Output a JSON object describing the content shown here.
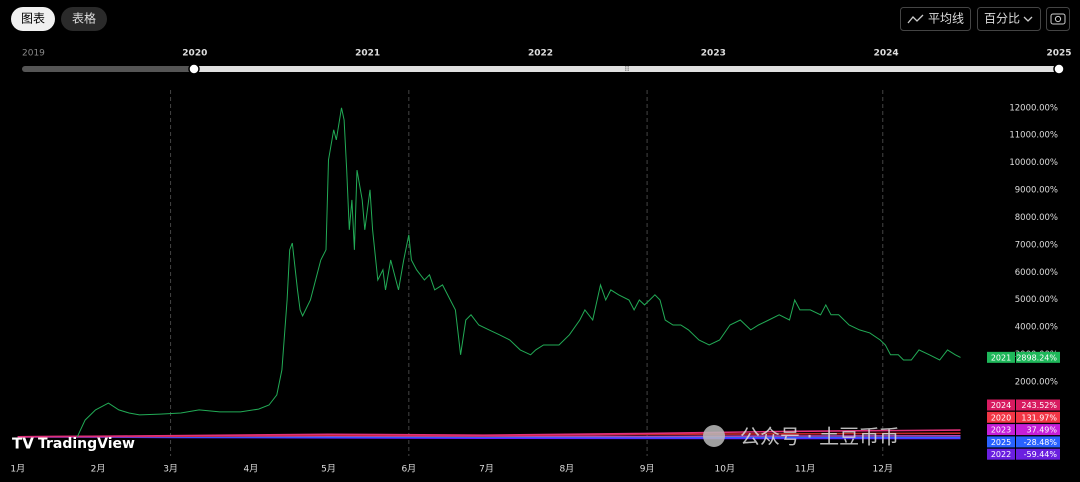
{
  "toolbar": {
    "tabs": [
      "图表",
      "表格"
    ],
    "buttons": [
      "平均线",
      "百分比"
    ]
  },
  "range_selector": {
    "years": [
      "2019",
      "2020",
      "2021",
      "2022",
      "2023",
      "2024",
      "2025"
    ]
  },
  "brand": "TradingView",
  "watermark": "公众号 · 土豆币币",
  "chart_data": {
    "type": "line",
    "xlim": [
      -3,
      370
    ],
    "xticks": [
      {
        "value": 0,
        "label": "1月"
      },
      {
        "value": 31,
        "label": "2月"
      },
      {
        "value": 59,
        "label": "3月"
      },
      {
        "value": 90,
        "label": "4月"
      },
      {
        "value": 120,
        "label": "5月"
      },
      {
        "value": 151,
        "label": "6月"
      },
      {
        "value": 181,
        "label": "7月"
      },
      {
        "value": 212,
        "label": "8月"
      },
      {
        "value": 243,
        "label": "9月"
      },
      {
        "value": 273,
        "label": "10月"
      },
      {
        "value": 304,
        "label": "11月"
      },
      {
        "value": 334,
        "label": "12月"
      }
    ],
    "ylim": [
      -700,
      12650
    ],
    "yticks": [
      {
        "value": 2000,
        "label": "2000.00%"
      },
      {
        "value": 3000,
        "label": "3000.00%"
      },
      {
        "value": 4000,
        "label": "4000.00%"
      },
      {
        "value": 5000,
        "label": "5000.00%"
      },
      {
        "value": 6000,
        "label": "6000.00%"
      },
      {
        "value": 7000,
        "label": "7000.00%"
      },
      {
        "value": 8000,
        "label": "8000.00%"
      },
      {
        "value": 9000,
        "label": "9000.00%"
      },
      {
        "value": 10000,
        "label": "10000.00%"
      },
      {
        "value": 11000,
        "label": "11000.00%"
      },
      {
        "value": 12000,
        "label": "12000.00%"
      }
    ],
    "series": [
      {
        "name": "2021",
        "color": "#22ab56",
        "tag_color": "#1eb75a",
        "x": [
          23,
          26,
          30,
          35,
          39,
          43,
          47,
          55,
          63,
          70,
          78,
          86,
          93,
          97,
          100,
          102,
          104,
          105,
          106,
          108,
          109,
          110,
          113,
          115,
          117,
          119,
          120,
          122,
          123,
          125,
          126,
          127,
          128,
          129,
          130,
          131,
          133,
          134,
          136,
          137,
          139,
          141,
          142,
          144,
          146,
          147,
          149,
          151,
          152,
          154,
          157,
          159,
          161,
          164,
          167,
          169,
          171,
          173,
          175,
          178,
          182,
          186,
          190,
          194,
          198,
          200,
          203,
          209,
          213,
          217,
          219,
          222,
          225,
          227,
          229,
          232,
          236,
          238,
          240,
          242,
          244,
          246,
          248,
          250,
          253,
          256,
          259,
          263,
          267,
          271,
          275,
          279,
          283,
          286,
          290,
          294,
          298,
          300,
          302,
          306,
          310,
          312,
          314,
          317,
          321,
          325,
          329,
          333,
          335,
          337,
          340,
          342,
          345,
          348,
          352,
          356,
          359,
          362,
          364
        ],
        "values": [
          0,
          610,
          980,
          1230,
          980,
          870,
          800,
          830,
          870,
          980,
          910,
          910,
          1010,
          1160,
          1530,
          2440,
          4990,
          6820,
          7070,
          5360,
          4630,
          4410,
          4990,
          5720,
          6450,
          6820,
          10100,
          11200,
          10830,
          12000,
          11560,
          9730,
          7550,
          8640,
          6820,
          9730,
          8640,
          7550,
          9010,
          7550,
          5720,
          6090,
          5360,
          6450,
          5720,
          5360,
          6450,
          7370,
          6450,
          6090,
          5720,
          5910,
          5360,
          5540,
          4990,
          4630,
          2990,
          4260,
          4450,
          4080,
          3900,
          3720,
          3530,
          3170,
          2990,
          3170,
          3350,
          3350,
          3720,
          4260,
          4630,
          4260,
          5540,
          4990,
          5360,
          5180,
          4990,
          4630,
          4990,
          4810,
          4990,
          5180,
          4990,
          4260,
          4080,
          4080,
          3900,
          3530,
          3350,
          3530,
          4080,
          4260,
          3900,
          4080,
          4260,
          4450,
          4260,
          4990,
          4630,
          4630,
          4450,
          4810,
          4450,
          4450,
          4080,
          3900,
          3790,
          3530,
          3350,
          2990,
          2990,
          2800,
          2800,
          3170,
          2990,
          2800,
          3170,
          2990,
          2898.24
        ],
        "last": {
          "value": 2898.24,
          "label": "2898.24%"
        }
      },
      {
        "name": "2024",
        "color": "#e0307a",
        "tag_color": "#d81b60",
        "x": [
          0,
          60,
          120,
          180,
          240,
          300,
          364
        ],
        "values": [
          0,
          40,
          90,
          60,
          120,
          200,
          243.52
        ],
        "last": {
          "value": 243.52,
          "label": "243.52%"
        }
      },
      {
        "name": "2020",
        "color": "#c62828",
        "tag_color": "#f23645",
        "x": [
          0,
          60,
          120,
          180,
          240,
          300,
          364
        ],
        "values": [
          0,
          20,
          60,
          40,
          90,
          110,
          131.97
        ],
        "last": {
          "value": 131.97,
          "label": "131.97%"
        }
      },
      {
        "name": "2023",
        "color": "#ab47bc",
        "tag_color": "#c51fd8",
        "x": [
          0,
          60,
          120,
          180,
          240,
          300,
          364
        ],
        "values": [
          0,
          30,
          25,
          20,
          10,
          30,
          37.49
        ],
        "last": {
          "value": 37.49,
          "label": "37.49%"
        }
      },
      {
        "name": "2025",
        "color": "#2962ff",
        "tag_color": "#2962ff",
        "x": [
          0,
          60,
          120,
          180,
          240,
          300,
          364
        ],
        "values": [
          0,
          -5,
          -10,
          -15,
          -20,
          -25,
          -28.48
        ],
        "last": {
          "value": -28.48,
          "label": "-28.48%"
        }
      },
      {
        "name": "2022",
        "color": "#651fff",
        "tag_color": "#6a1fe0",
        "x": [
          0,
          60,
          120,
          180,
          240,
          300,
          364
        ],
        "values": [
          0,
          -20,
          -35,
          -50,
          -55,
          -60,
          -59.44
        ],
        "last": {
          "value": -59.44,
          "label": "-59.44%"
        }
      }
    ]
  }
}
